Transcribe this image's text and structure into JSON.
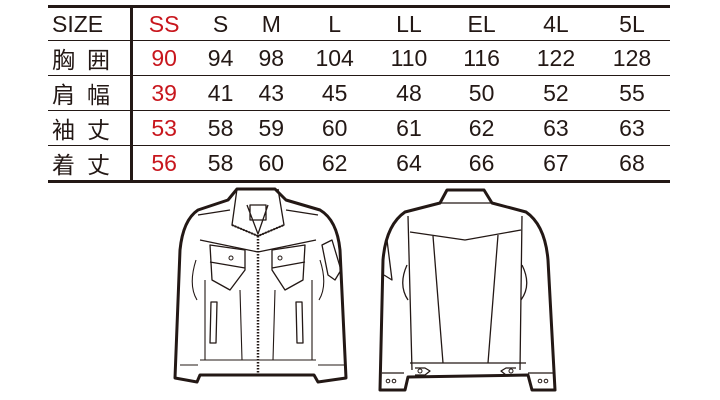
{
  "size_table": {
    "header": {
      "label": "SIZE",
      "sizes": [
        "SS",
        "S",
        "M",
        "L",
        "LL",
        "EL",
        "4L",
        "5L"
      ]
    },
    "rows": [
      {
        "label": "胸囲",
        "values": [
          "90",
          "94",
          "98",
          "104",
          "110",
          "116",
          "122",
          "128"
        ]
      },
      {
        "label": "肩幅",
        "values": [
          "39",
          "41",
          "43",
          "45",
          "48",
          "50",
          "52",
          "55"
        ]
      },
      {
        "label": "袖丈",
        "values": [
          "53",
          "58",
          "59",
          "60",
          "61",
          "62",
          "63",
          "63"
        ]
      },
      {
        "label": "着丈",
        "values": [
          "56",
          "58",
          "60",
          "62",
          "64",
          "66",
          "67",
          "68"
        ]
      }
    ],
    "highlight_color": "#c8161d"
  },
  "illustrations": {
    "front": "jacket-front",
    "back": "jacket-back"
  }
}
